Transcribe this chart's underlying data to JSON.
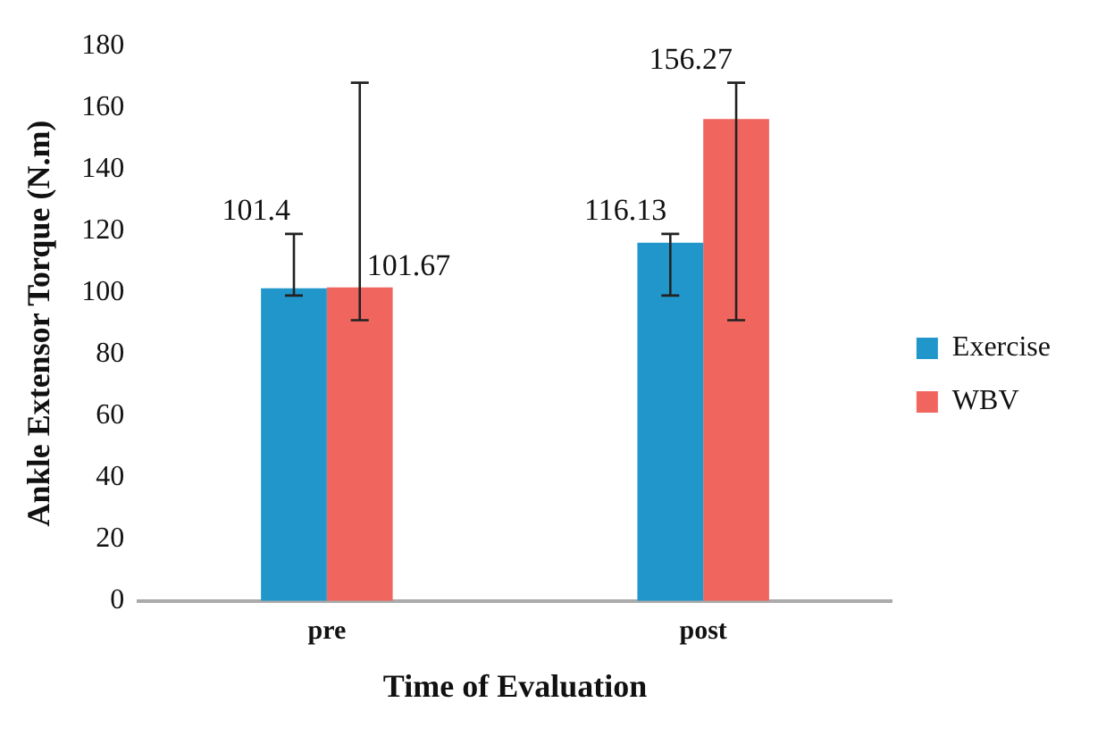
{
  "chart_data": {
    "type": "bar",
    "xlabel": "Time of Evaluation",
    "ylabel": "Ankle Extensor Torque (N.m)",
    "categories": [
      "pre",
      "post"
    ],
    "series": [
      {
        "name": "Exercise",
        "color": "#2196cb",
        "values": [
          101.4,
          116.13
        ],
        "errors": [
          [
            99,
            119
          ],
          [
            99,
            119
          ]
        ]
      },
      {
        "name": "WBV",
        "color": "#f0665f",
        "values": [
          101.67,
          156.27
        ],
        "errors": [
          [
            91,
            168
          ],
          [
            91,
            168
          ]
        ]
      }
    ],
    "ylim": [
      0,
      180
    ],
    "yticks": [
      0,
      20,
      40,
      60,
      80,
      100,
      120,
      140,
      160,
      180
    ],
    "data_labels": true,
    "legend": "right",
    "grid": false
  }
}
